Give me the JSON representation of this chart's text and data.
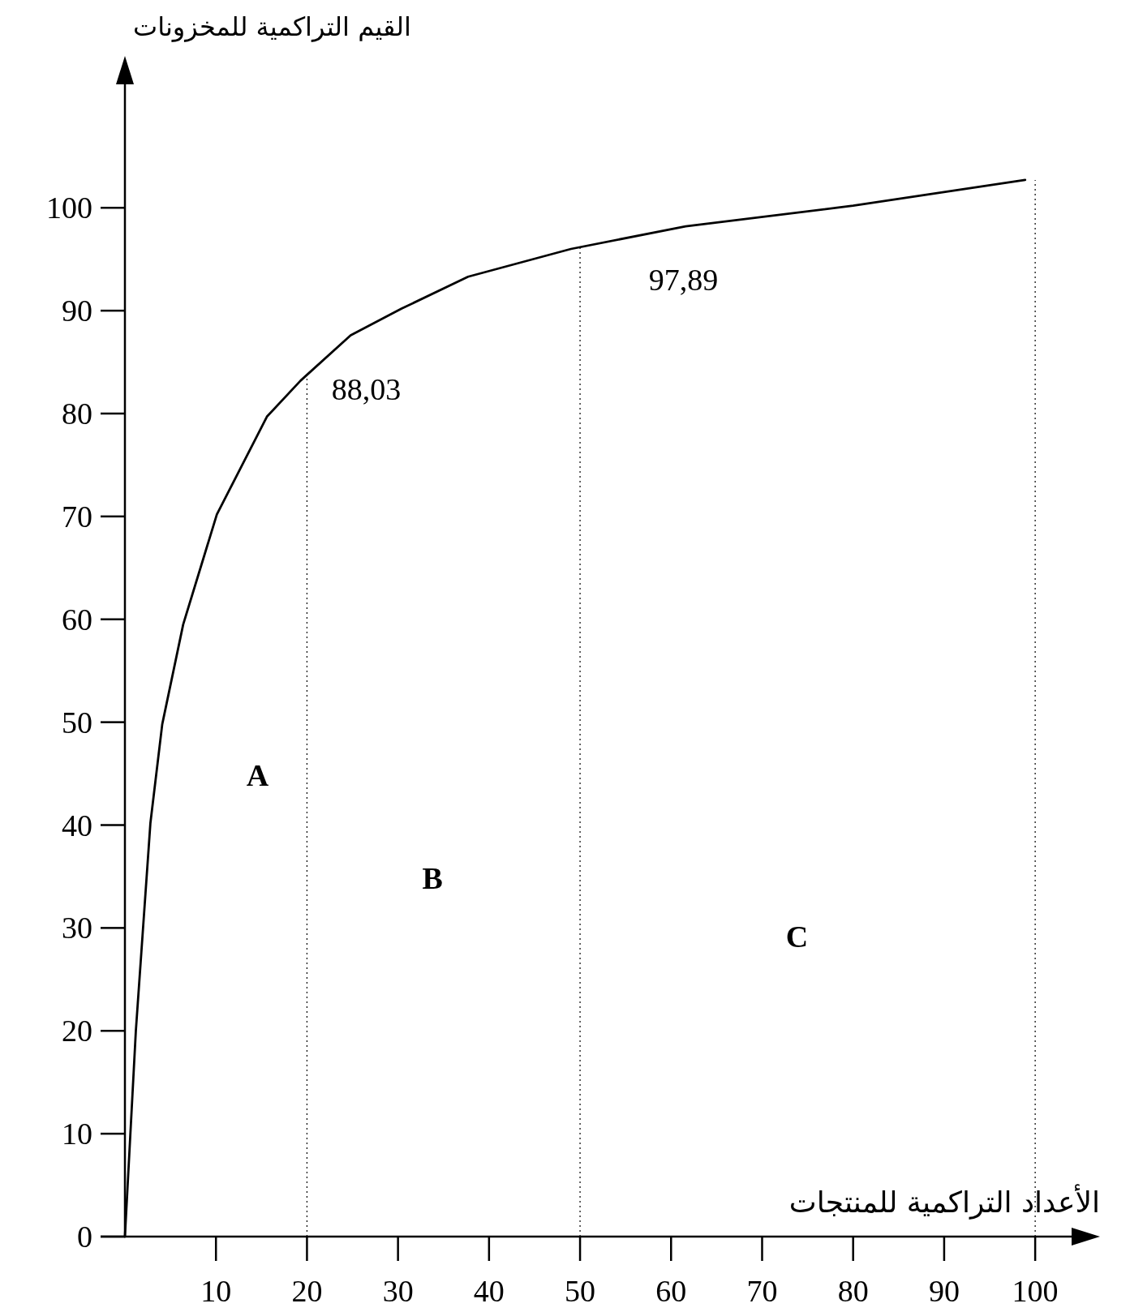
{
  "chart_data": {
    "type": "line",
    "xlabel": "الأعداد التراكمية للمنتجات",
    "ylabel": "القيم التراكمية للمخزونات",
    "series": [
      {
        "color": "#000000",
        "x": [
          0,
          1.2,
          2.8,
          4.1,
          6.4,
          10.1,
          15.6,
          19.3,
          24.8,
          30.4,
          37.7,
          49,
          61.6,
          80,
          98.9
        ],
        "values": [
          0,
          20,
          40.2,
          49.8,
          59.5,
          70.2,
          79.7,
          83.2,
          87.6,
          90.2,
          93.3,
          96,
          98.2,
          100.2,
          102.7
        ]
      }
    ],
    "xlim": [
      0,
      104
    ],
    "ylim": [
      0,
      112
    ],
    "xticks": [
      10,
      20,
      30,
      40,
      50,
      60,
      70,
      80,
      90,
      100
    ],
    "yticks": [
      0,
      10,
      20,
      30,
      40,
      50,
      60,
      70,
      80,
      90,
      100
    ],
    "grid": false,
    "marker": "none",
    "line_style": "solid",
    "ref_lines": [
      {
        "axis": "x",
        "value": 20,
        "line_style": "dotted"
      },
      {
        "axis": "x",
        "value": 50,
        "line_style": "dotted"
      },
      {
        "axis": "x",
        "value": 100,
        "line_style": "dotted"
      }
    ],
    "annotations": [
      "88,03",
      "97,89",
      "**A**",
      "**B**",
      "**C**"
    ]
  }
}
